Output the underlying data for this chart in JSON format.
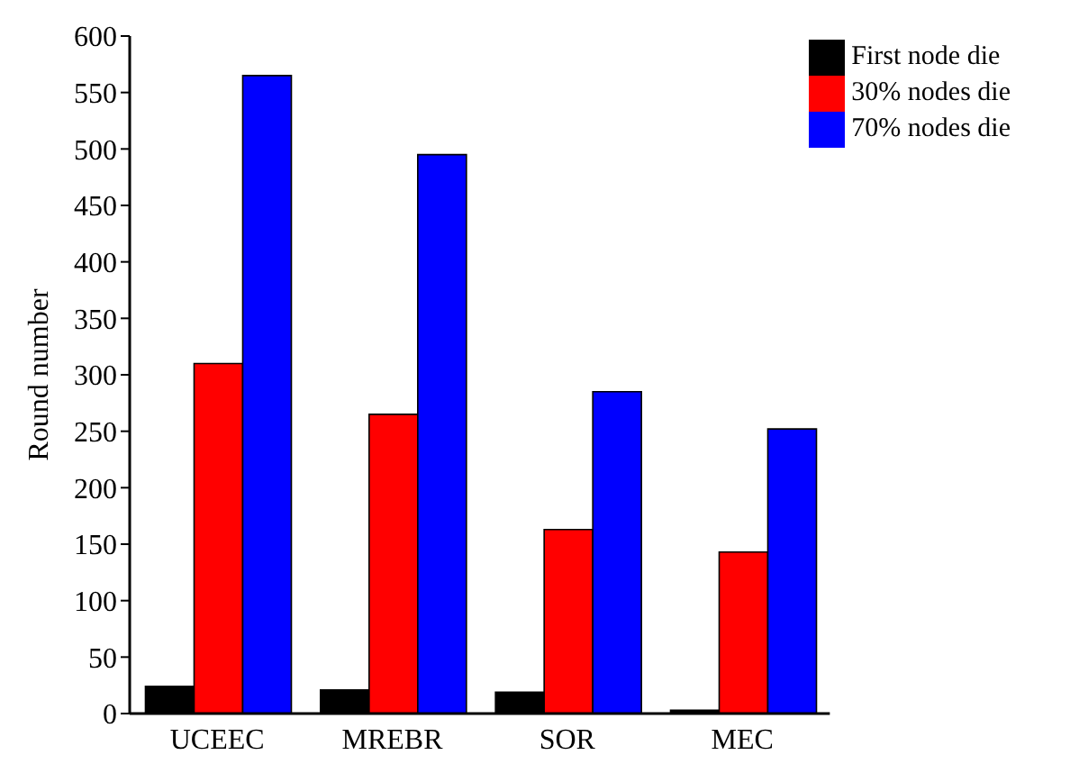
{
  "chart_data": {
    "type": "bar",
    "ylabel": "Round number",
    "categories": [
      "UCEEC",
      "MREBR",
      "SOR",
      "MEC"
    ],
    "series": [
      {
        "name": "First node die",
        "color": "#000000",
        "values": [
          24,
          21,
          19,
          3
        ]
      },
      {
        "name": "30% nodes die",
        "color": "#ff0000",
        "values": [
          310,
          265,
          163,
          143
        ]
      },
      {
        "name": "70% nodes die",
        "color": "#0000ff",
        "values": [
          565,
          495,
          285,
          252
        ]
      }
    ],
    "ylim": [
      0,
      600
    ],
    "yticks": [
      0,
      50,
      100,
      150,
      200,
      250,
      300,
      350,
      400,
      450,
      500,
      550,
      600
    ],
    "grid": false,
    "legend": "top right"
  }
}
